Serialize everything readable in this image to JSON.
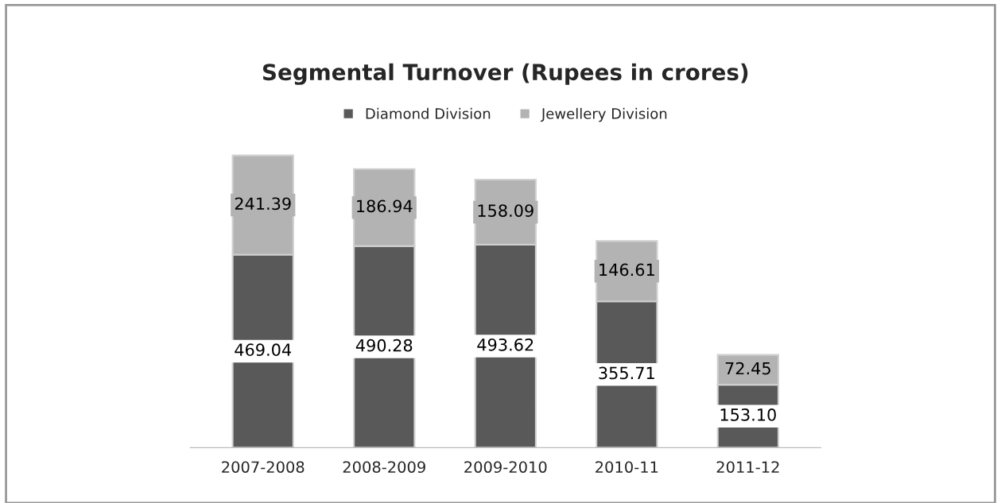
{
  "chart_data": {
    "type": "bar",
    "title": "Segmental Turnover (Rupees in crores)",
    "stacked": true,
    "data_labels": true,
    "legend": "top",
    "grid": false,
    "categories": [
      "2007-2008",
      "2008-2009",
      "2009-2010",
      "2010-11",
      "2011-12"
    ],
    "series": [
      {
        "name": "Diamond Division",
        "color": "#595959",
        "values": [
          469.04,
          490.28,
          493.62,
          355.71,
          153.1
        ],
        "value_labels": [
          "469.04",
          "490.28",
          "493.62",
          "355.71",
          "153.10"
        ]
      },
      {
        "name": "Jewellery Division",
        "color": "#b3b3b3",
        "values": [
          241.39,
          186.94,
          158.09,
          146.61,
          72.45
        ],
        "value_labels": [
          "241.39",
          "186.94",
          "158.09",
          "146.61",
          "72.45"
        ]
      }
    ]
  }
}
